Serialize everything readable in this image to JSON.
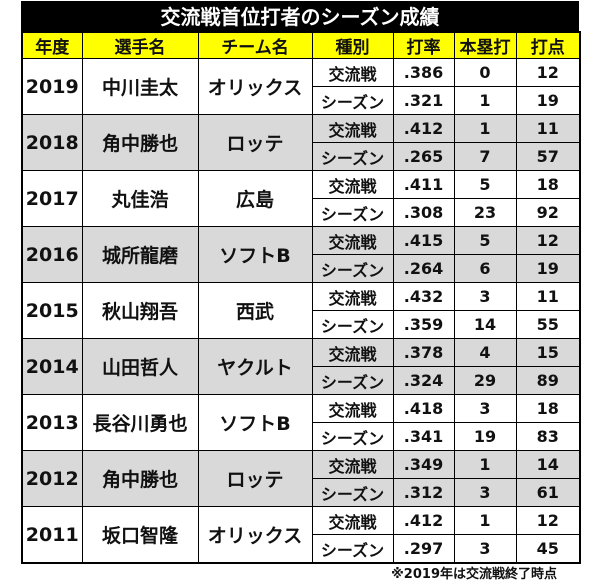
{
  "title": "交流戦首位打者のシーズン成績",
  "headers": [
    "年度",
    "選手名",
    "チーム名",
    "種別",
    "打率",
    "本塁打",
    "打点"
  ],
  "type_labels": {
    "interleague": "交流戦",
    "season": "シーズン"
  },
  "rows": [
    {
      "year": "2019",
      "player": "中川圭太",
      "team": "オリックス",
      "interleague": {
        "avg": ".386",
        "hr": "0",
        "rbi": "12"
      },
      "season": {
        "avg": ".321",
        "hr": "1",
        "rbi": "19"
      }
    },
    {
      "year": "2018",
      "player": "角中勝也",
      "team": "ロッテ",
      "interleague": {
        "avg": ".412",
        "hr": "1",
        "rbi": "11"
      },
      "season": {
        "avg": ".265",
        "hr": "7",
        "rbi": "57"
      }
    },
    {
      "year": "2017",
      "player": "丸佳浩",
      "team": "広島",
      "interleague": {
        "avg": ".411",
        "hr": "5",
        "rbi": "18"
      },
      "season": {
        "avg": ".308",
        "hr": "23",
        "rbi": "92"
      }
    },
    {
      "year": "2016",
      "player": "城所龍磨",
      "team": "ソフトB",
      "interleague": {
        "avg": ".415",
        "hr": "5",
        "rbi": "12"
      },
      "season": {
        "avg": ".264",
        "hr": "6",
        "rbi": "19"
      }
    },
    {
      "year": "2015",
      "player": "秋山翔吾",
      "team": "西武",
      "interleague": {
        "avg": ".432",
        "hr": "3",
        "rbi": "11"
      },
      "season": {
        "avg": ".359",
        "hr": "14",
        "rbi": "55"
      }
    },
    {
      "year": "2014",
      "player": "山田哲人",
      "team": "ヤクルト",
      "interleague": {
        "avg": ".378",
        "hr": "4",
        "rbi": "15"
      },
      "season": {
        "avg": ".324",
        "hr": "29",
        "rbi": "89"
      }
    },
    {
      "year": "2013",
      "player": "長谷川勇也",
      "team": "ソフトB",
      "interleague": {
        "avg": ".418",
        "hr": "3",
        "rbi": "18"
      },
      "season": {
        "avg": ".341",
        "hr": "19",
        "rbi": "83"
      }
    },
    {
      "year": "2012",
      "player": "角中勝也",
      "team": "ロッテ",
      "interleague": {
        "avg": ".349",
        "hr": "1",
        "rbi": "14"
      },
      "season": {
        "avg": ".312",
        "hr": "3",
        "rbi": "61"
      }
    },
    {
      "year": "2011",
      "player": "坂口智隆",
      "team": "オリックス",
      "interleague": {
        "avg": ".412",
        "hr": "1",
        "rbi": "12"
      },
      "season": {
        "avg": ".297",
        "hr": "3",
        "rbi": "45"
      }
    }
  ],
  "colors": {
    "title_bg": "#000000",
    "header_bg": "#ffff00",
    "shaded_row": "#d9d9d9"
  },
  "footnote": "※2019年は交流戦終了時点"
}
